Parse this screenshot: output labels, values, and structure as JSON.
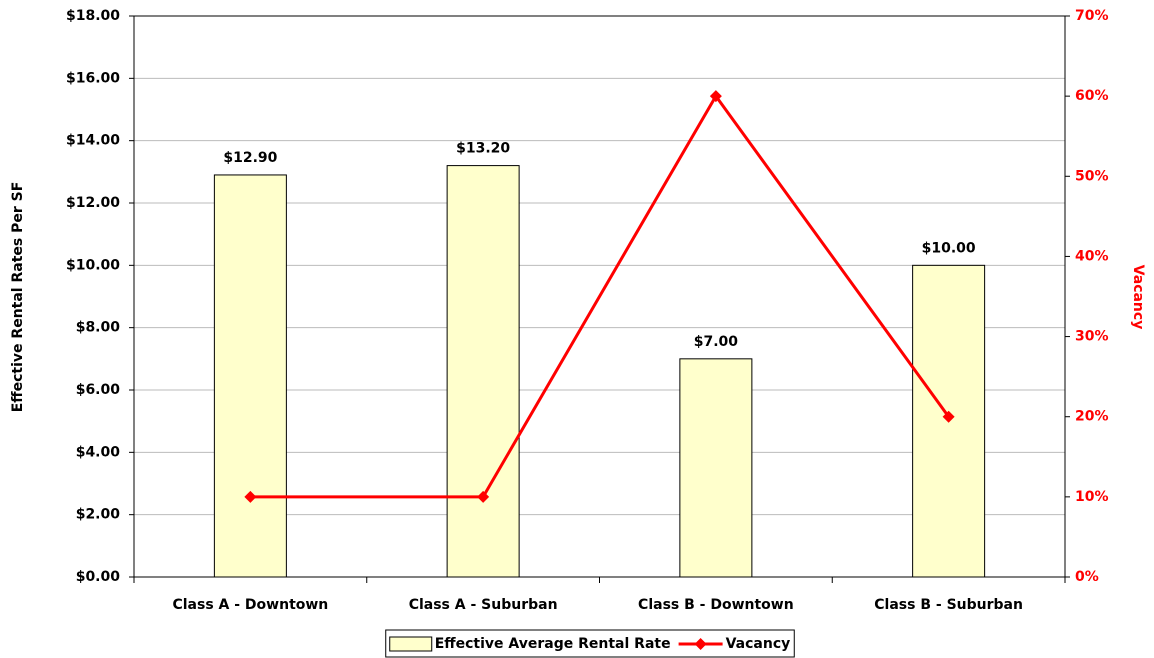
{
  "chart_data": {
    "type": "bar",
    "y_label": "Effective Rental Rates Per SF",
    "y2_label": "Vacancy",
    "categories": [
      "Class A - Downtown",
      "Class A - Suburban",
      "Class B - Downtown",
      "Class B - Suburban"
    ],
    "series": [
      {
        "name": "Effective Average Rental Rate",
        "type": "bar",
        "color": "#ffffcc",
        "values": [
          12.9,
          13.2,
          7,
          10
        ],
        "value_labels": [
          "$12.90",
          "$13.20",
          "$7.00",
          "$10.00"
        ]
      },
      {
        "name": "Vacancy",
        "type": "line",
        "color": "#ff0000",
        "axis": "y2",
        "values": [
          10,
          10,
          60,
          20
        ]
      }
    ],
    "ylim": [
      0,
      18
    ],
    "yticks": [
      {
        "value": 0,
        "label": "$0.00"
      },
      {
        "value": 2,
        "label": "$2.00"
      },
      {
        "value": 4,
        "label": "$4.00"
      },
      {
        "value": 6,
        "label": "$6.00"
      },
      {
        "value": 8,
        "label": "$8.00"
      },
      {
        "value": 10,
        "label": "$10.00"
      },
      {
        "value": 12,
        "label": "$12.00"
      },
      {
        "value": 14,
        "label": "$14.00"
      },
      {
        "value": 16,
        "label": "$16.00"
      },
      {
        "value": 18,
        "label": "$18.00"
      }
    ],
    "y2lim": [
      0,
      70
    ],
    "y2ticks": [
      {
        "value": 0,
        "label": "0%"
      },
      {
        "value": 10,
        "label": "10%"
      },
      {
        "value": 20,
        "label": "20%"
      },
      {
        "value": 30,
        "label": "30%"
      },
      {
        "value": 40,
        "label": "40%"
      },
      {
        "value": 50,
        "label": "50%"
      },
      {
        "value": 60,
        "label": "60%"
      },
      {
        "value": 70,
        "label": "70%"
      }
    ],
    "grid": true,
    "legend": "bottom"
  }
}
